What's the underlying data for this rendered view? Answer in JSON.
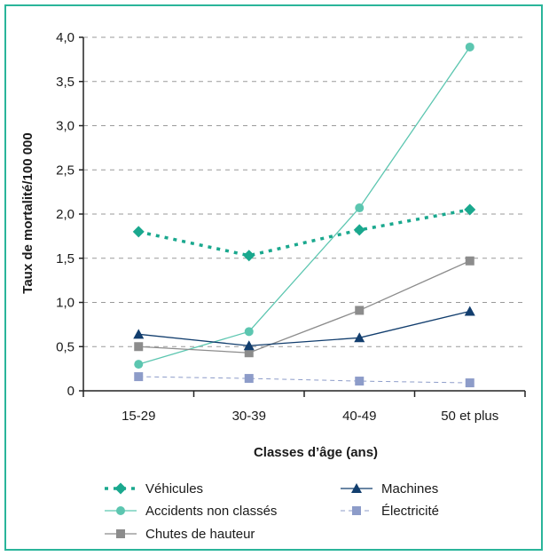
{
  "chart_data": {
    "type": "line",
    "xlabel": "Classes d’âge (ans)",
    "ylabel": "Taux de mortalité/100 000",
    "categories": [
      "15-29",
      "30-39",
      "40-49",
      "50 et plus"
    ],
    "ylim": [
      0,
      4.0
    ],
    "yticks": [
      "0",
      "0,5",
      "1,0",
      "1,5",
      "2,0",
      "2,5",
      "3,0",
      "3,5",
      "4,0"
    ],
    "grid": true,
    "series": [
      {
        "name": "Véhicules",
        "values": [
          1.8,
          1.53,
          1.82,
          2.05
        ],
        "color": "#1aa88e",
        "marker": "diamond",
        "dash": "dotted-thick"
      },
      {
        "name": "Accidents non classés",
        "values": [
          0.3,
          0.67,
          2.07,
          3.89
        ],
        "color": "#5cc6b0",
        "marker": "circle",
        "dash": "solid"
      },
      {
        "name": "Chutes de hauteur",
        "values": [
          0.5,
          0.43,
          0.91,
          1.47
        ],
        "color": "#8c8c8c",
        "marker": "square",
        "dash": "solid"
      },
      {
        "name": "Machines",
        "values": [
          0.64,
          0.51,
          0.6,
          0.9
        ],
        "color": "#123e6e",
        "marker": "triangle",
        "dash": "solid"
      },
      {
        "name": "Électricité",
        "values": [
          0.16,
          0.14,
          0.11,
          0.09
        ],
        "color": "#8d9cc9",
        "marker": "square",
        "dash": "dashed"
      }
    ]
  }
}
